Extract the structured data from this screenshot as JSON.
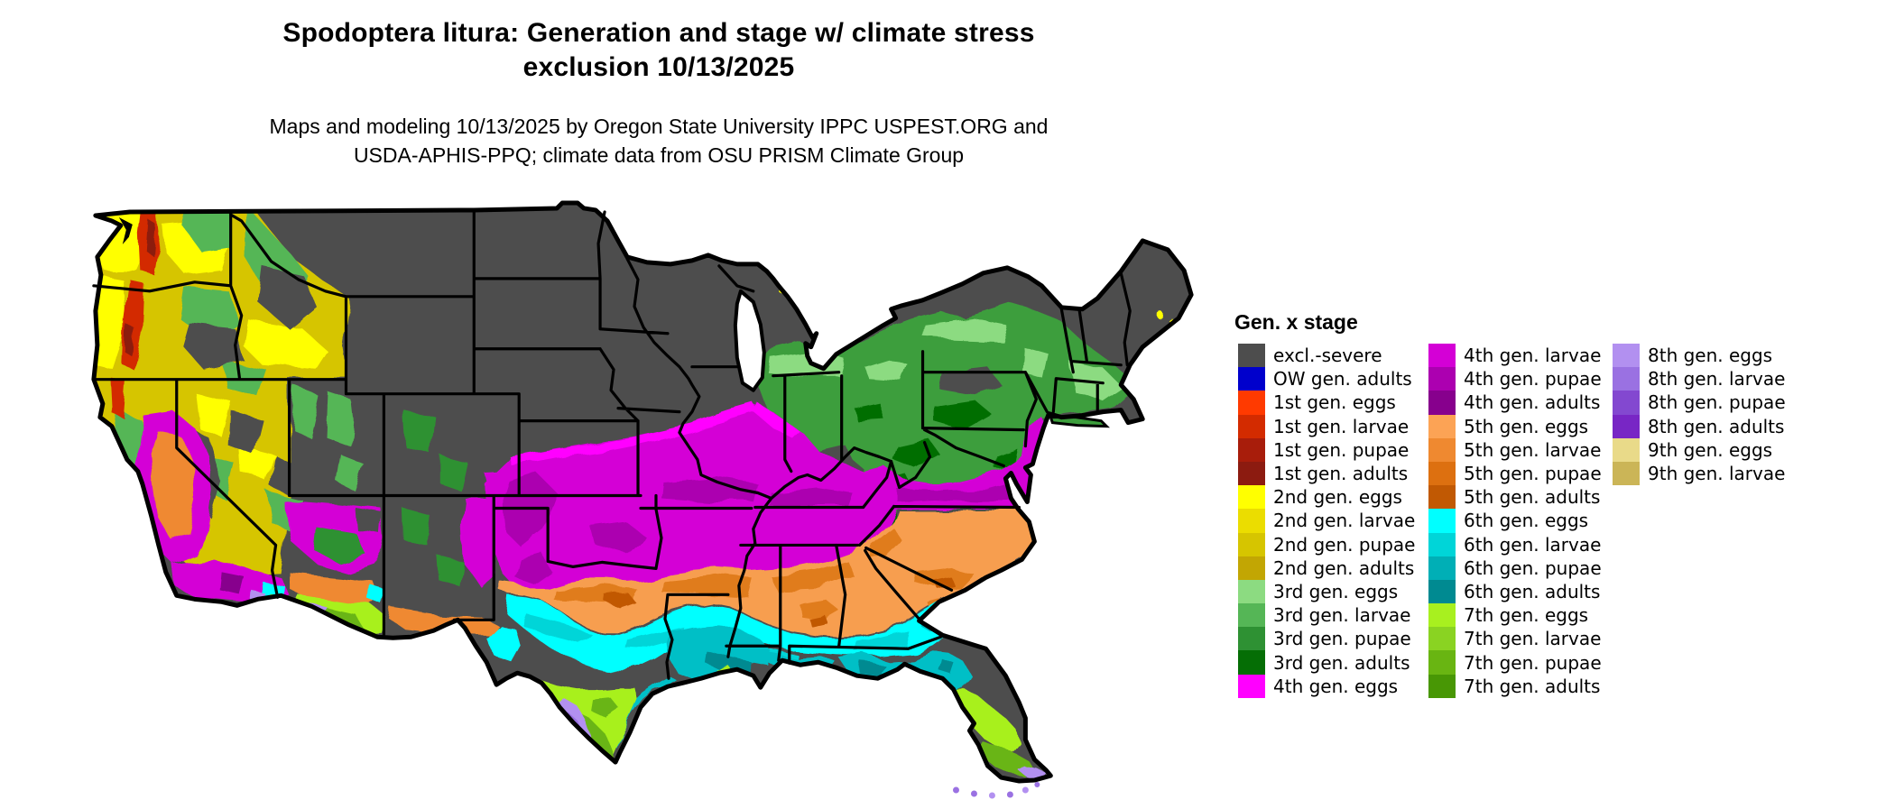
{
  "header": {
    "title_line1": "Spodoptera litura: Generation and stage w/ climate stress",
    "title_line2": "exclusion 10/13/2025",
    "subtitle_line1": "Maps and modeling 10/13/2025 by Oregon State University IPPC USPEST.ORG and",
    "subtitle_line2": "USDA-APHIS-PPQ; climate data from OSU PRISM Climate Group"
  },
  "legend": {
    "title": "Gen. x stage",
    "columns": [
      {
        "items": [
          {
            "label": "excl.-severe",
            "color": "#4D4D4D"
          },
          {
            "label": "OW gen. adults",
            "color": "#0000CC"
          },
          {
            "label": "1st gen. eggs",
            "color": "#FF3A00"
          },
          {
            "label": "1st gen. larvae",
            "color": "#D32B00"
          },
          {
            "label": "1st gen. pupae",
            "color": "#A81D0B"
          },
          {
            "label": "1st gen. adults",
            "color": "#8C1B10"
          },
          {
            "label": "2nd gen. eggs",
            "color": "#FFFF00"
          },
          {
            "label": "2nd gen. larvae",
            "color": "#EBDD00"
          },
          {
            "label": "2nd gen. pupae",
            "color": "#D6C500"
          },
          {
            "label": "2nd gen. adults",
            "color": "#C2A603"
          },
          {
            "label": "3rd gen. eggs",
            "color": "#8CDB81"
          },
          {
            "label": "3rd gen. larvae",
            "color": "#55B656"
          },
          {
            "label": "3rd gen. pupae",
            "color": "#2E9133"
          },
          {
            "label": "3rd gen. adults",
            "color": "#056E05"
          },
          {
            "label": "4th gen. eggs",
            "color": "#FF00FF"
          }
        ]
      },
      {
        "items": [
          {
            "label": "4th gen. larvae",
            "color": "#D400D6"
          },
          {
            "label": "4th gen. pupae",
            "color": "#AC00B0"
          },
          {
            "label": "4th gen. adults",
            "color": "#87008D"
          },
          {
            "label": "5th gen. eggs",
            "color": "#FCA355"
          },
          {
            "label": "5th gen. larvae",
            "color": "#EF8930"
          },
          {
            "label": "5th gen. pupae",
            "color": "#DD7010"
          },
          {
            "label": "5th gen. adults",
            "color": "#C15903"
          },
          {
            "label": "6th gen. eggs",
            "color": "#00FFFF"
          },
          {
            "label": "6th gen. larvae",
            "color": "#00D5D8"
          },
          {
            "label": "6th gen. pupae",
            "color": "#00AFB6"
          },
          {
            "label": "6th gen. adults",
            "color": "#008A91"
          },
          {
            "label": "7th gen. eggs",
            "color": "#A8F01F"
          },
          {
            "label": "7th gen. larvae",
            "color": "#8AD322"
          },
          {
            "label": "7th gen. pupae",
            "color": "#69B512"
          },
          {
            "label": "7th gen. adults",
            "color": "#489705"
          }
        ]
      },
      {
        "items": [
          {
            "label": "8th gen. eggs",
            "color": "#B290F0"
          },
          {
            "label": "8th gen. larvae",
            "color": "#9A71E2"
          },
          {
            "label": "8th gen. pupae",
            "color": "#8348D0"
          },
          {
            "label": "8th gen. adults",
            "color": "#7826C5"
          },
          {
            "label": "9th gen. eggs",
            "color": "#E9DA89"
          },
          {
            "label": "9th gen. larvae",
            "color": "#CBB557"
          }
        ]
      }
    ]
  },
  "map": {
    "region": "Continental United States",
    "background_color": "#FFFFFF",
    "excluded_land_color": "#4D4D4D",
    "border_color": "#000000"
  }
}
